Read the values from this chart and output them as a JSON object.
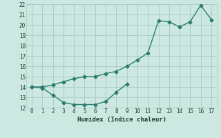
{
  "xlabel": "Humidex (Indice chaleur)",
  "x_upper": [
    0,
    1,
    2,
    3,
    4,
    5,
    6,
    7,
    8,
    9,
    10,
    11,
    12,
    13,
    14,
    15,
    16,
    17
  ],
  "y_upper": [
    14.0,
    14.0,
    14.2,
    14.5,
    14.8,
    15.0,
    15.0,
    15.3,
    15.5,
    16.0,
    16.6,
    17.3,
    20.4,
    20.3,
    19.8,
    20.3,
    21.9,
    20.5
  ],
  "x_lower": [
    0,
    1,
    2,
    3,
    4,
    5,
    6,
    7,
    8,
    9
  ],
  "y_lower": [
    14.0,
    13.9,
    13.2,
    12.5,
    12.3,
    12.3,
    12.3,
    12.6,
    13.5,
    14.3
  ],
  "line_color": "#2a7d6e",
  "bg_color": "#cce8e0",
  "grid_color": "#aacfc6",
  "xlim": [
    -0.5,
    17.5
  ],
  "ylim": [
    12,
    22
  ],
  "yticks": [
    12,
    13,
    14,
    15,
    16,
    17,
    18,
    19,
    20,
    21,
    22
  ],
  "xticks": [
    0,
    1,
    2,
    3,
    4,
    5,
    6,
    7,
    8,
    9,
    10,
    11,
    12,
    13,
    14,
    15,
    16,
    17
  ],
  "tick_fontsize": 5.5,
  "xlabel_fontsize": 6.5
}
